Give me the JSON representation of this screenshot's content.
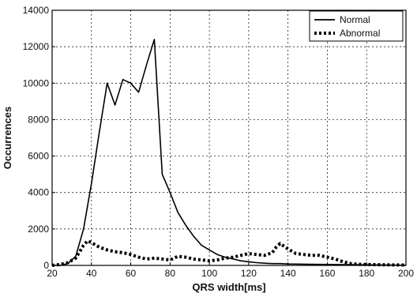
{
  "chart_data": {
    "type": "line",
    "title": "",
    "xlabel": "QRS width[ms]",
    "ylabel": "Occurrences",
    "xlim": [
      20,
      200
    ],
    "ylim": [
      0,
      14000
    ],
    "x_ticks": [
      "20",
      "40",
      "60",
      "80",
      "100",
      "120",
      "140",
      "160",
      "180",
      "200"
    ],
    "y_ticks": [
      "0",
      "2000",
      "4000",
      "6000",
      "8000",
      "10000",
      "12000",
      "14000"
    ],
    "grid": true,
    "legend_position": "top-right",
    "series": [
      {
        "name": "Normal",
        "style": "solid",
        "color": "#000000",
        "x": [
          20,
          24,
          28,
          32,
          36,
          40,
          44,
          48,
          52,
          56,
          60,
          64,
          68,
          72,
          76,
          80,
          84,
          88,
          92,
          96,
          100,
          104,
          108,
          112,
          116,
          120,
          124,
          128,
          132,
          136,
          140,
          150,
          160,
          170,
          180,
          190,
          200
        ],
        "y": [
          0,
          0,
          100,
          500,
          2000,
          4500,
          7300,
          10000,
          8800,
          10200,
          10000,
          9500,
          11000,
          12400,
          5000,
          4000,
          2900,
          2200,
          1600,
          1100,
          850,
          600,
          450,
          350,
          250,
          200,
          150,
          120,
          100,
          100,
          80,
          60,
          50,
          40,
          30,
          20,
          10
        ]
      },
      {
        "name": "Abnormal",
        "style": "dotted",
        "color": "#000000",
        "x": [
          20,
          24,
          28,
          32,
          36,
          38,
          40,
          44,
          48,
          52,
          56,
          60,
          64,
          68,
          72,
          76,
          80,
          84,
          88,
          92,
          96,
          100,
          104,
          108,
          112,
          116,
          120,
          124,
          128,
          132,
          134,
          136,
          140,
          144,
          148,
          152,
          156,
          160,
          164,
          168,
          172,
          176,
          180,
          190,
          200
        ],
        "y": [
          0,
          50,
          150,
          400,
          1100,
          1350,
          1250,
          1000,
          850,
          750,
          700,
          600,
          450,
          350,
          400,
          350,
          300,
          500,
          450,
          350,
          300,
          250,
          300,
          400,
          450,
          550,
          650,
          600,
          550,
          700,
          1000,
          1200,
          900,
          650,
          600,
          550,
          550,
          450,
          350,
          200,
          100,
          60,
          50,
          30,
          20
        ]
      }
    ]
  }
}
